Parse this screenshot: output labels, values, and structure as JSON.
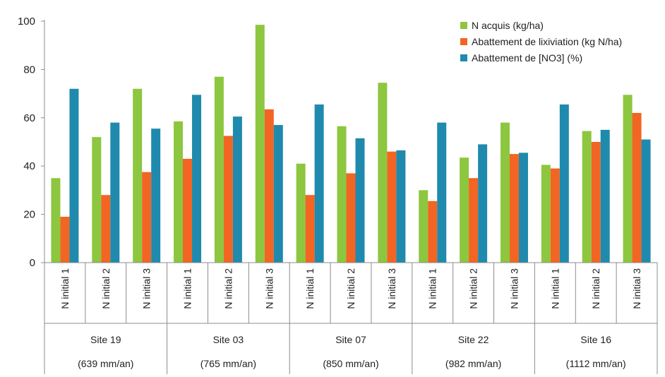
{
  "chart_data": {
    "type": "bar",
    "ylim": [
      0,
      100
    ],
    "yticks": [
      0,
      20,
      40,
      60,
      80,
      100
    ],
    "grid": false,
    "legend_position": "top-right",
    "groups": [
      {
        "site": "Site 19",
        "rain": "(639 mm/an)",
        "categories": [
          "N initial 1",
          "N initial 2",
          "N initial 3"
        ]
      },
      {
        "site": "Site 03",
        "rain": "(765 mm/an)",
        "categories": [
          "N initial 1",
          "N initial 2",
          "N initial 3"
        ]
      },
      {
        "site": "Site 07",
        "rain": "(850 mm/an)",
        "categories": [
          "N initial 1",
          "N initial 2",
          "N initial 3"
        ]
      },
      {
        "site": "Site 22",
        "rain": "(982 mm/an)",
        "categories": [
          "N initial 1",
          "N initial 2",
          "N initial 3"
        ]
      },
      {
        "site": "Site 16",
        "rain": "(1112 mm/an)",
        "categories": [
          "N initial 1",
          "N initial 2",
          "N initial 3"
        ]
      }
    ],
    "series": [
      {
        "name": "N acquis (kg/ha)",
        "color": "#8dc63f",
        "values": [
          35,
          52,
          72,
          58.5,
          77,
          98.5,
          41,
          56.5,
          74.5,
          30,
          43.5,
          58,
          40.5,
          54.5,
          69.5
        ]
      },
      {
        "name": "Abattement de lixiviation (kg N/ha)",
        "color": "#f26522",
        "values": [
          19,
          28,
          37.5,
          43,
          52.5,
          63.5,
          28,
          37,
          46,
          25.5,
          35,
          45,
          39,
          50,
          62
        ]
      },
      {
        "name": "Abattement de [NO3] (%)",
        "color": "#1f8aad",
        "values": [
          72,
          58,
          55.5,
          69.5,
          60.5,
          57,
          65.5,
          51.5,
          46.5,
          58,
          49,
          45.5,
          65.5,
          55,
          51
        ]
      }
    ]
  }
}
